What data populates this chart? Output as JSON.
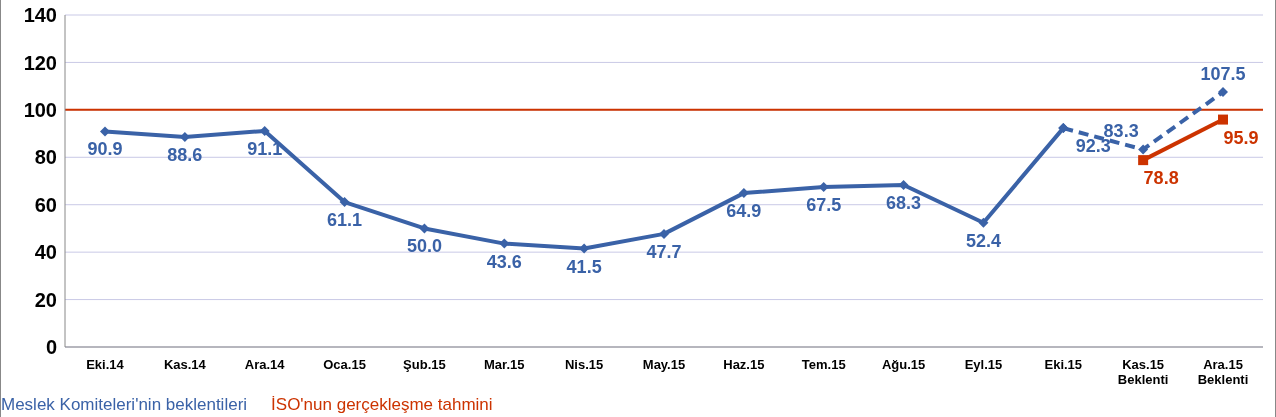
{
  "chart_data": {
    "type": "line",
    "categories": [
      "Eki.14",
      "Kas.14",
      "Ara.14",
      "Oca.15",
      "Şub.15",
      "Mar.15",
      "Nis.15",
      "May.15",
      "Haz.15",
      "Tem.15",
      "Ağu.15",
      "Eyl.15",
      "Eki.15",
      "Kas.15\nBeklenti",
      "Ara.15\nBeklenti"
    ],
    "series": [
      {
        "name": "Meslek Komiteleri'nin beklentileri",
        "color": "#3a62a7",
        "marker": "diamond",
        "line_style": "solid",
        "values": [
          90.9,
          88.6,
          91.1,
          61.1,
          50.0,
          43.6,
          41.5,
          47.7,
          64.9,
          67.5,
          68.3,
          52.4,
          92.3,
          null,
          null
        ],
        "value_labels": [
          "90.9",
          "88.6",
          "91.1",
          "61.1",
          "50.0",
          "43.6",
          "41.5",
          "47.7",
          "64.9",
          "67.5",
          "68.3",
          "52.4",
          "92.3",
          null,
          null
        ]
      },
      {
        "color": "#3a62a7",
        "marker": "diamond",
        "line_style": "dashed",
        "values": [
          null,
          null,
          null,
          null,
          null,
          null,
          null,
          null,
          null,
          null,
          null,
          null,
          92.3,
          83.3,
          107.5
        ],
        "value_labels": [
          null,
          null,
          null,
          null,
          null,
          null,
          null,
          null,
          null,
          null,
          null,
          null,
          null,
          "83.3",
          "107.5"
        ]
      },
      {
        "name": "İSO'nun gerçekleşme tahmini",
        "color": "#cc3300",
        "marker": "square",
        "line_style": "solid",
        "values": [
          null,
          null,
          null,
          null,
          null,
          null,
          null,
          null,
          null,
          null,
          null,
          null,
          null,
          78.8,
          95.9
        ],
        "value_labels": [
          null,
          null,
          null,
          null,
          null,
          null,
          null,
          null,
          null,
          null,
          null,
          null,
          null,
          "78.8",
          "95.9"
        ]
      }
    ],
    "ylim": [
      0,
      140
    ],
    "yticks": [
      0,
      20,
      40,
      60,
      80,
      100,
      120,
      140
    ],
    "grid": "y",
    "ref_lines": [
      {
        "axis": "y",
        "value": 100,
        "color": "#cc3300",
        "line_style": "solid"
      }
    ],
    "legend": "bottom left"
  }
}
